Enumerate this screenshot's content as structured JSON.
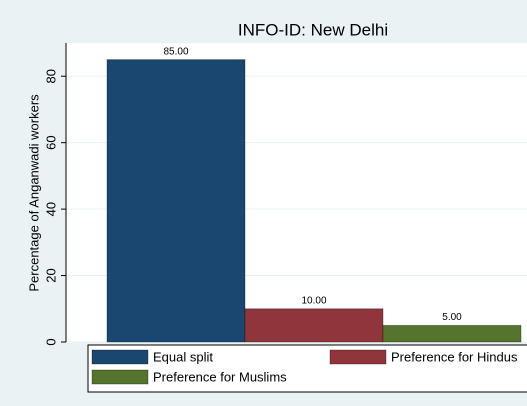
{
  "chart_data": {
    "type": "bar",
    "title": "INFO-ID: New Delhi",
    "y_label": "Percentage of Anganwadi workers",
    "series": [
      {
        "name": "Equal split",
        "color": "#1a476f",
        "values": [
          85
        ],
        "value_labels": [
          "85.00"
        ]
      },
      {
        "name": "Preference for Hindus",
        "color": "#90353b",
        "values": [
          10
        ],
        "value_labels": [
          "10.00"
        ]
      },
      {
        "name": "Preference for Muslims",
        "color": "#55752f",
        "values": [
          5
        ],
        "value_labels": [
          "5.00"
        ]
      }
    ],
    "ylim": [
      0,
      90
    ],
    "yticks": [
      0,
      20,
      40,
      60,
      80
    ],
    "grid": true,
    "legend": "bottom"
  }
}
